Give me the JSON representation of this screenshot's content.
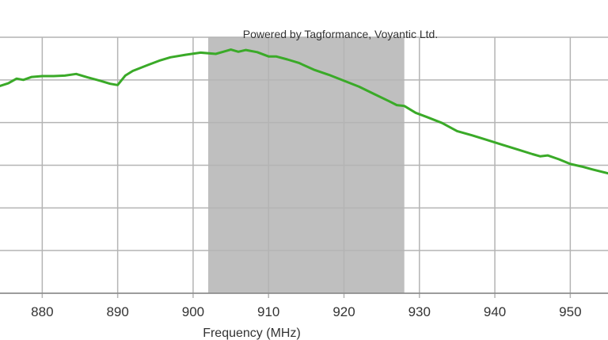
{
  "chart_data": {
    "type": "line",
    "title": "Powered by Tagformance, Voyantic Ltd.",
    "xlabel": "Frequency (MHz)",
    "ylabel": "",
    "xlim": [
      874.4,
      955.0
    ],
    "ylim": [
      0,
      6
    ],
    "xticks": [
      880,
      890,
      900,
      910,
      920,
      930,
      940,
      950
    ],
    "grid": true,
    "band": {
      "x0": 902,
      "x1": 928,
      "color": "#bfbfbf"
    },
    "colors": {
      "line": "#3aaa28",
      "grid": "#b4b4b4",
      "axis": "#888888"
    },
    "series": [
      {
        "x": [
          874.4,
          875.5,
          876.6,
          877.5,
          878.6,
          880.0,
          881.5,
          883.0,
          884.5,
          886.0,
          887.5,
          889.0,
          890.0,
          891.0,
          892.0,
          894.0,
          895.5,
          897.0,
          899.0,
          901.0,
          903.0,
          904.0,
          905.0,
          906.0,
          907.0,
          908.5,
          910.0,
          911.0,
          912.5,
          914.0,
          916.0,
          918.0,
          920.0,
          922.0,
          924.0,
          926.0,
          927.0,
          928.0,
          929.5,
          931.0,
          933.0,
          935.0,
          937.0,
          939.0,
          941.0,
          943.0,
          945.0,
          946.0,
          947.0,
          948.5,
          950.0,
          951.5,
          953.0,
          955.0
        ],
        "y": [
          4.86,
          4.92,
          5.03,
          5.0,
          5.07,
          5.09,
          5.09,
          5.1,
          5.14,
          5.06,
          4.99,
          4.91,
          4.88,
          5.1,
          5.21,
          5.35,
          5.45,
          5.53,
          5.59,
          5.64,
          5.61,
          5.66,
          5.71,
          5.66,
          5.7,
          5.65,
          5.55,
          5.55,
          5.48,
          5.4,
          5.24,
          5.12,
          4.98,
          4.84,
          4.67,
          4.5,
          4.41,
          4.39,
          4.23,
          4.13,
          3.99,
          3.8,
          3.7,
          3.59,
          3.48,
          3.37,
          3.26,
          3.21,
          3.23,
          3.14,
          3.03,
          2.97,
          2.9,
          2.81
        ]
      }
    ]
  }
}
